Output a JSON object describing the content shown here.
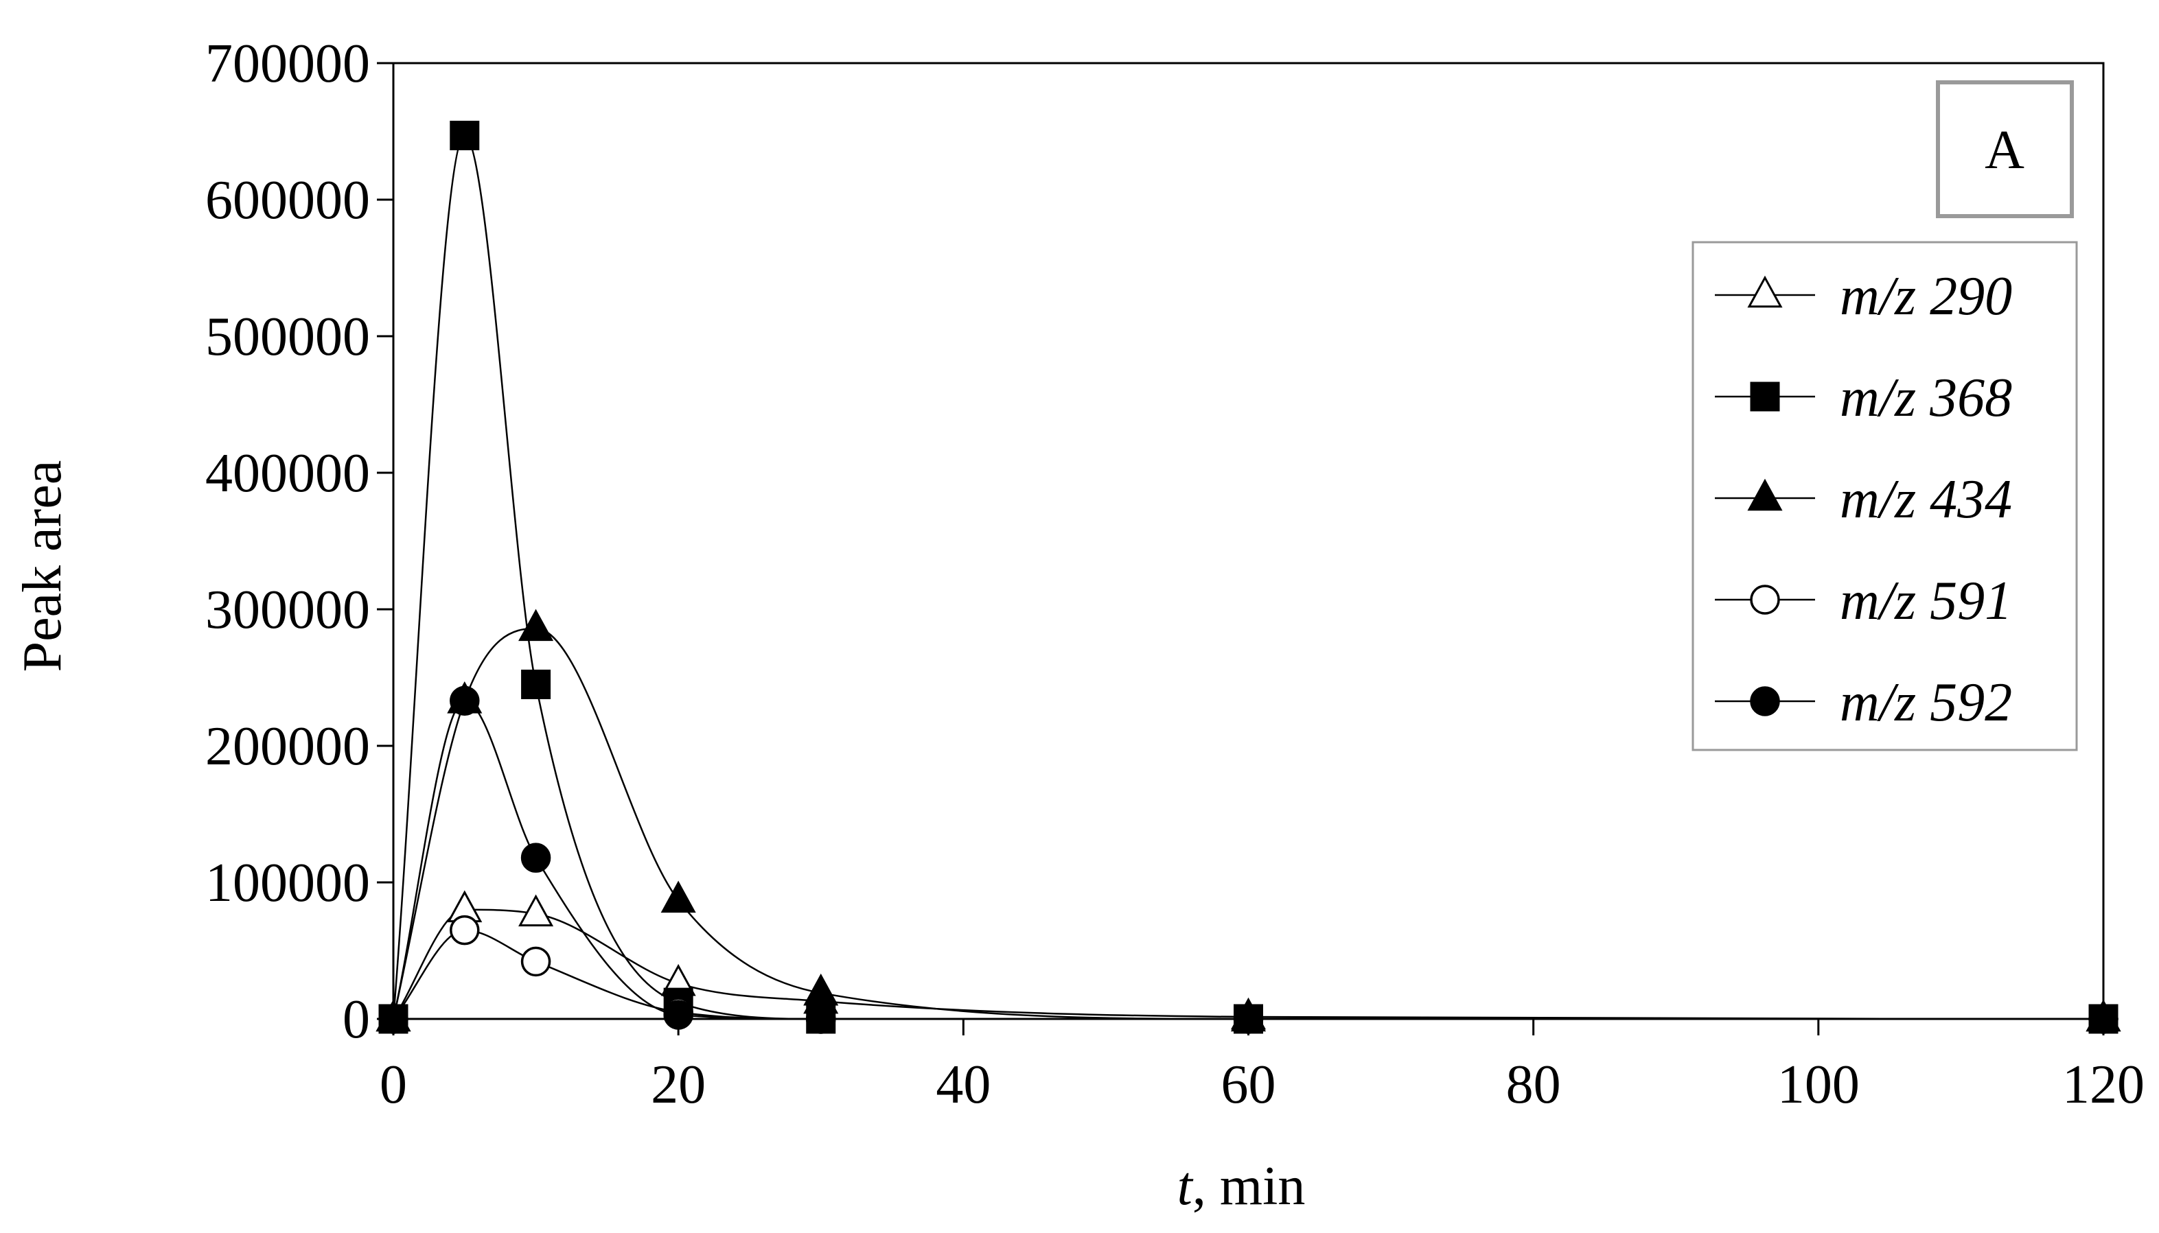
{
  "chart_data": {
    "type": "scatter",
    "title": "",
    "panel_label": "A",
    "xlabel_italic": "t",
    "xlabel_rest": ", min",
    "ylabel": "Peak area",
    "xlim": [
      0,
      120
    ],
    "ylim": [
      0,
      700000
    ],
    "xticks": [
      0,
      20,
      40,
      60,
      80,
      100,
      120
    ],
    "yticks": [
      0,
      100000,
      200000,
      300000,
      400000,
      500000,
      600000,
      700000
    ],
    "grid": false,
    "legend_position": "right, upper-middle",
    "x": [
      0,
      5,
      10,
      20,
      30,
      60,
      120
    ],
    "series": [
      {
        "name": "m/z 290",
        "marker": "triangle-open",
        "values": [
          0,
          80000,
          77000,
          26000,
          13000,
          1500,
          0
        ]
      },
      {
        "name": "m/z 368",
        "marker": "square-filled",
        "values": [
          0,
          647000,
          245000,
          12000,
          0,
          0,
          0
        ]
      },
      {
        "name": "m/z 434",
        "marker": "triangle-filled",
        "values": [
          0,
          233000,
          286000,
          87000,
          19000,
          0,
          0
        ]
      },
      {
        "name": "m/z 591",
        "marker": "circle-open",
        "values": [
          0,
          65000,
          42000,
          5000,
          0,
          0,
          0
        ]
      },
      {
        "name": "m/z 592",
        "marker": "circle-filled",
        "values": [
          0,
          233000,
          118000,
          3000,
          0,
          0,
          0
        ]
      }
    ]
  }
}
